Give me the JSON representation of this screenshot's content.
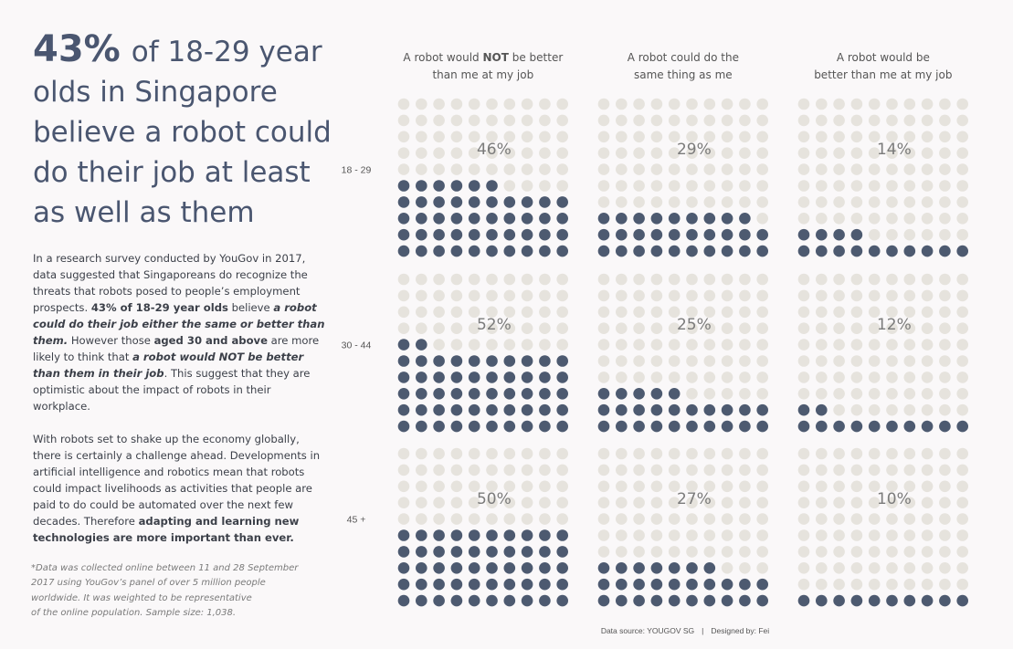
{
  "headline": {
    "big": "43%",
    "rest": "of 18-29 year olds in Singapore believe a robot could do their job at least as well as them"
  },
  "body": {
    "p1": [
      {
        "t": "In a research survey conducted by YouGov in 2017, data suggested that Singaporeans do  recognize the threats that robots posed to people’s employment prospects. ",
        "s": ""
      },
      {
        "t": "43% of 18-29 year olds",
        "s": "b"
      },
      {
        "t": " believe ",
        "s": ""
      },
      {
        "t": "a robot could do their job either the same or better than them.",
        "s": "bi"
      },
      {
        "t": " However those ",
        "s": ""
      },
      {
        "t": "aged 30 and above",
        "s": "b"
      },
      {
        "t": " are more likely to think that ",
        "s": ""
      },
      {
        "t": "a robot would NOT be better than them in their job",
        "s": "bi"
      },
      {
        "t": ". This suggest that they are optimistic about the impact of robots in their workplace.",
        "s": ""
      }
    ],
    "p2": [
      {
        "t": "With robots set to shake up the economy globally, there is certainly a challenge ahead. Developments in artificial intelligence and robotics mean that robots could impact livelihoods as activities that people are paid to do could be automated over the next few decades. Therefore ",
        "s": ""
      },
      {
        "t": "adapting and learning new technologies are more important than ever.",
        "s": "b"
      }
    ]
  },
  "footnote": "*Data was collected online between 11 and 28 September\n2017 using YouGov’s panel of over 5 million people\nworldwide. It was weighted to be representative\nof the online population. Sample size: 1,038.",
  "credit": {
    "source": "Data source:  YOUGOV SG",
    "separator": "|",
    "designer": "Designed by: Fei"
  },
  "chart_data": {
    "type": "waffle",
    "grid": "10x10",
    "columns": [
      {
        "pre": "A robot would ",
        "bold": "NOT",
        "post": " be better than me at my job"
      },
      {
        "pre": "A robot could do the same thing as me",
        "bold": "",
        "post": ""
      },
      {
        "pre": "A robot would be better than me at my job",
        "bold": "",
        "post": ""
      }
    ],
    "rows": [
      "18 - 29",
      "30 - 44",
      "45 +"
    ],
    "values": [
      [
        46,
        29,
        14
      ],
      [
        52,
        25,
        12
      ],
      [
        50,
        27,
        10
      ]
    ],
    "value_suffix": "%",
    "colors": {
      "filled": "#4d5a70",
      "empty": "#e6e3dd",
      "label": "#7b7b7b"
    }
  }
}
